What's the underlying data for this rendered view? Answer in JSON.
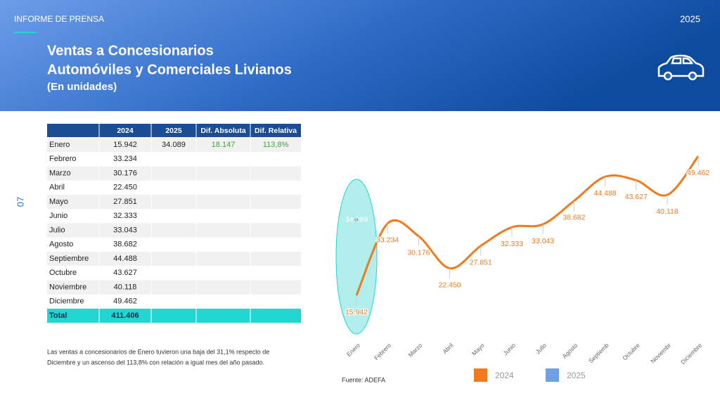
{
  "header": {
    "kicker": "INFORME DE PRENSA",
    "year": "2025",
    "title_line1": "Ventas a Concesionarios",
    "title_line2": "Automóviles y Comerciales Livianos",
    "subtitle": "(En unidades)"
  },
  "page_number": "07",
  "table": {
    "columns": [
      "2024",
      "2025",
      "Dif. Absoluta",
      "Dif. Relativa"
    ],
    "rows": [
      [
        "Enero",
        "15.942",
        "34.089",
        "18.147",
        "113,8%"
      ],
      [
        "Febrero",
        "33.234"
      ],
      [
        "Marzo",
        "30.176"
      ],
      [
        "Abril",
        "22.450"
      ],
      [
        "Mayo",
        "27.851"
      ],
      [
        "Junio",
        "32.333"
      ],
      [
        "Julio",
        "33.043"
      ],
      [
        "Agosto",
        "38.682"
      ],
      [
        "Septiembre",
        "44.488"
      ],
      [
        "Octubre",
        "43.627"
      ],
      [
        "Noviembre",
        "40.118"
      ],
      [
        "Diciembre",
        "49.462"
      ]
    ],
    "total": [
      "Total",
      "411.406"
    ]
  },
  "note": [
    "Las ventas a concesionarios de Enero tuvieron una baja del 31,1% respecto de",
    "Diciembre y un ascenso del 113,8% con relación a igual mes del año pasado."
  ],
  "source": "Fuente: ADEFA",
  "chart_data": {
    "type": "line",
    "categories": [
      "Enero",
      "Febrero",
      "Marzo",
      "Abril",
      "Mayo",
      "Junio",
      "Julio",
      "Agosto",
      "Septiemb",
      "Octubre",
      "Noviembr",
      "Diciembre"
    ],
    "series": [
      {
        "name": "2024",
        "color": "#f07b1f",
        "values": [
          15942,
          33234,
          30176,
          22450,
          27851,
          32333,
          33043,
          38682,
          44488,
          43627,
          40118,
          49462
        ],
        "value_labels": [
          "15.942",
          "33.234",
          "30.176",
          "22.450",
          "27.851",
          "32.333",
          "33.043",
          "38.682",
          "44.488",
          "43.627",
          "40.118",
          "49.462"
        ]
      },
      {
        "name": "2025",
        "color": "#6fa0e6",
        "values": [
          34089,
          null,
          null,
          null,
          null,
          null,
          null,
          null,
          null,
          null,
          null,
          null
        ],
        "value_labels": [
          "34.089",
          null,
          null,
          null,
          null,
          null,
          null,
          null,
          null,
          null,
          null,
          null
        ]
      }
    ]
  }
}
